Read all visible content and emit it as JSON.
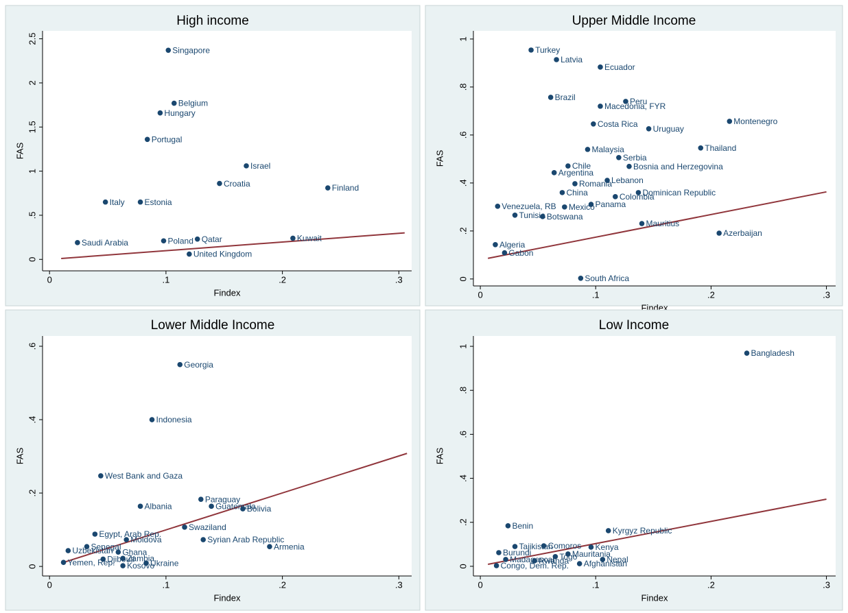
{
  "chart_data": [
    {
      "type": "scatter",
      "title": "High income",
      "x_label": "Findex",
      "y_label": "FAS",
      "color": "#1a476f",
      "line_color": "#90353b",
      "xlim": [
        -0.006,
        0.311
      ],
      "ylim": [
        -0.13,
        2.59
      ],
      "xticks": [
        0,
        {
          "value": 0.1,
          "label": ".1"
        },
        {
          "value": 0.2,
          "label": ".2"
        },
        {
          "value": 0.3,
          "label": ".3"
        }
      ],
      "yticks": [
        0,
        {
          "value": 0.5,
          "label": ".5"
        },
        1,
        1.5,
        2,
        2.5
      ],
      "labels": [
        "Singapore",
        "Belgium",
        "Hungary",
        "Portugal",
        "Israel",
        "Croatia",
        "Finland",
        "Italy",
        "Estonia",
        "Kuwait",
        "Qatar",
        "Poland",
        "Saudi Arabia",
        "United Kingdom"
      ],
      "x": [
        0.102,
        0.107,
        0.095,
        0.084,
        0.169,
        0.146,
        0.239,
        0.048,
        0.078,
        0.209,
        0.127,
        0.098,
        0.024,
        0.12
      ],
      "values": [
        2.37,
        1.77,
        1.66,
        1.36,
        1.06,
        0.86,
        0.81,
        0.65,
        0.65,
        0.24,
        0.23,
        0.21,
        0.19,
        0.06
      ],
      "fit_line": {
        "x": [
          0.01,
          0.305
        ],
        "values": [
          0.01,
          0.3
        ]
      }
    },
    {
      "type": "scatter",
      "title": "Upper Middle Income",
      "x_label": "Findex",
      "y_label": "FAS",
      "color": "#1a476f",
      "line_color": "#90353b",
      "xlim": [
        -0.006,
        0.308
      ],
      "ylim": [
        -0.029,
        1.034
      ],
      "xticks": [
        0,
        {
          "value": 0.1,
          "label": ".1"
        },
        {
          "value": 0.2,
          "label": ".2"
        },
        {
          "value": 0.3,
          "label": ".3"
        }
      ],
      "yticks": [
        0,
        {
          "value": 0.2,
          "label": ".2"
        },
        {
          "value": 0.4,
          "label": ".4"
        },
        {
          "value": 0.6,
          "label": ".6"
        },
        {
          "value": 0.8,
          "label": ".8"
        },
        1
      ],
      "labels": [
        "Turkey",
        "Latvia",
        "Ecuador",
        "Brazil",
        "Peru",
        "Macedonia, FYR",
        "Montenegro",
        "Costa Rica",
        "Uruguay",
        "Thailand",
        "Malaysia",
        "Serbia",
        "Chile",
        "Bosnia and Herzegovina",
        "Argentina",
        "Lebanon",
        "Romania",
        "China",
        "Dominican Republic",
        "Colombia",
        "Panama",
        "Venezuela, RB",
        "Mexico",
        "Tunisia",
        "Botswana",
        "Mauritius",
        "Azerbaijan",
        "Algeria",
        "Gabon",
        "South Africa"
      ],
      "x": [
        0.044,
        0.066,
        0.104,
        0.061,
        0.126,
        0.104,
        0.216,
        0.098,
        0.146,
        0.191,
        0.093,
        0.12,
        0.076,
        0.129,
        0.064,
        0.11,
        0.082,
        0.071,
        0.137,
        0.117,
        0.096,
        0.015,
        0.073,
        0.03,
        0.054,
        0.14,
        0.207,
        0.013,
        0.021,
        0.087
      ],
      "values": [
        0.954,
        0.914,
        0.883,
        0.757,
        0.74,
        0.72,
        0.657,
        0.646,
        0.626,
        0.546,
        0.54,
        0.506,
        0.471,
        0.469,
        0.443,
        0.411,
        0.397,
        0.36,
        0.36,
        0.343,
        0.311,
        0.303,
        0.3,
        0.266,
        0.26,
        0.231,
        0.191,
        0.143,
        0.109,
        0.003
      ],
      "fit_line": {
        "x": [
          0.0066,
          0.3
        ],
        "values": [
          0.086,
          0.363
        ]
      }
    },
    {
      "type": "scatter",
      "title": "Lower Middle Income",
      "x_label": "Findex",
      "y_label": "FAS",
      "color": "#1a476f",
      "line_color": "#90353b",
      "xlim": [
        -0.006,
        0.311
      ],
      "ylim": [
        -0.026,
        0.628
      ],
      "xticks": [
        0,
        {
          "value": 0.1,
          "label": ".1"
        },
        {
          "value": 0.2,
          "label": ".2"
        },
        {
          "value": 0.3,
          "label": ".3"
        }
      ],
      "yticks": [
        0,
        {
          "value": 0.2,
          "label": ".2"
        },
        {
          "value": 0.4,
          "label": ".4"
        },
        {
          "value": 0.6,
          "label": ".6"
        }
      ],
      "labels": [
        "Georgia",
        "Indonesia",
        "West Bank and Gaza",
        "Paraguay",
        "Albania",
        "Guatemala",
        "Bolivia",
        "Swaziland",
        "Egypt, Arab Rep.",
        "Syrian Arab Republic",
        "Moldova",
        "Armenia",
        "Uzbekistan",
        "Senegal",
        "Ghana",
        "Zambia",
        "Djibouti",
        "Yemen, Rep.",
        "Kosovo",
        "Ukraine"
      ],
      "x": [
        0.112,
        0.088,
        0.044,
        0.13,
        0.078,
        0.139,
        0.166,
        0.116,
        0.039,
        0.132,
        0.066,
        0.189,
        0.016,
        0.032,
        0.059,
        0.063,
        0.046,
        0.012,
        0.063,
        0.083
      ],
      "values": [
        0.55,
        0.4,
        0.247,
        0.183,
        0.164,
        0.164,
        0.157,
        0.107,
        0.088,
        0.073,
        0.073,
        0.054,
        0.043,
        0.054,
        0.039,
        0.022,
        0.02,
        0.011,
        0.002,
        0.009
      ],
      "fit_line": {
        "x": [
          0.01,
          0.307
        ],
        "values": [
          0.009,
          0.308
        ]
      }
    },
    {
      "type": "scatter",
      "title": "Low Income",
      "x_label": "Findex",
      "y_label": "FAS",
      "color": "#1a476f",
      "line_color": "#90353b",
      "xlim": [
        -0.006,
        0.308
      ],
      "ylim": [
        -0.044,
        1.047
      ],
      "xticks": [
        0,
        {
          "value": 0.1,
          "label": ".1"
        },
        {
          "value": 0.2,
          "label": ".2"
        },
        {
          "value": 0.3,
          "label": ".3"
        }
      ],
      "yticks": [
        0,
        {
          "value": 0.2,
          "label": ".2"
        },
        {
          "value": 0.4,
          "label": ".4"
        },
        {
          "value": 0.6,
          "label": ".6"
        },
        {
          "value": 0.8,
          "label": ".8"
        },
        1
      ],
      "labels": [
        "Bangladesh",
        "Benin",
        "Kyrgyz Republic",
        "Tajikistan",
        "Comoros",
        "Kenya",
        "Burundi",
        "Mauritania",
        "Madagascar",
        "Nepal",
        "Togo",
        "Afghanistan",
        "Congo, Dem. Rep.",
        "Rwanda"
      ],
      "x": [
        0.231,
        0.024,
        0.111,
        0.03,
        0.055,
        0.096,
        0.016,
        0.076,
        0.022,
        0.106,
        0.065,
        0.086,
        0.014,
        0.047
      ],
      "values": [
        0.969,
        0.184,
        0.162,
        0.09,
        0.093,
        0.087,
        0.062,
        0.056,
        0.031,
        0.031,
        0.044,
        0.012,
        0.003,
        0.025
      ],
      "fit_line": {
        "x": [
          0.0066,
          0.3
        ],
        "values": [
          0.009,
          0.305
        ]
      }
    }
  ]
}
